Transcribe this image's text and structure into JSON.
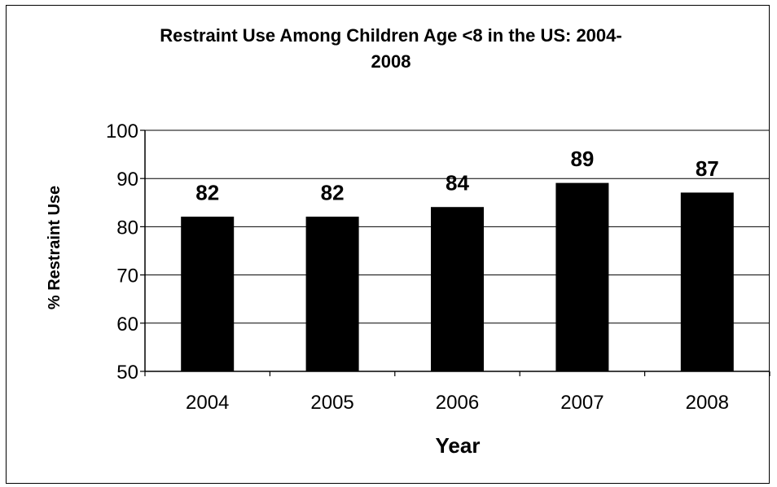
{
  "chart_data": {
    "type": "bar",
    "title": "Restraint Use Among Children Age <8 in the US: 2004-2008",
    "title_lines": [
      "Restraint Use Among Children Age <8 in the US: 2004-",
      "2008"
    ],
    "xlabel": "Year",
    "ylabel": "% Restraint Use",
    "categories": [
      "2004",
      "2005",
      "2006",
      "2007",
      "2008"
    ],
    "values": [
      82,
      82,
      84,
      89,
      87
    ],
    "data_labels": [
      "82",
      "82",
      "84",
      "89",
      "87"
    ],
    "ylim": [
      50,
      100
    ],
    "yticks": [
      50,
      60,
      70,
      80,
      90,
      100
    ],
    "grid": true,
    "legend": "none",
    "bar_color": "#000000"
  }
}
